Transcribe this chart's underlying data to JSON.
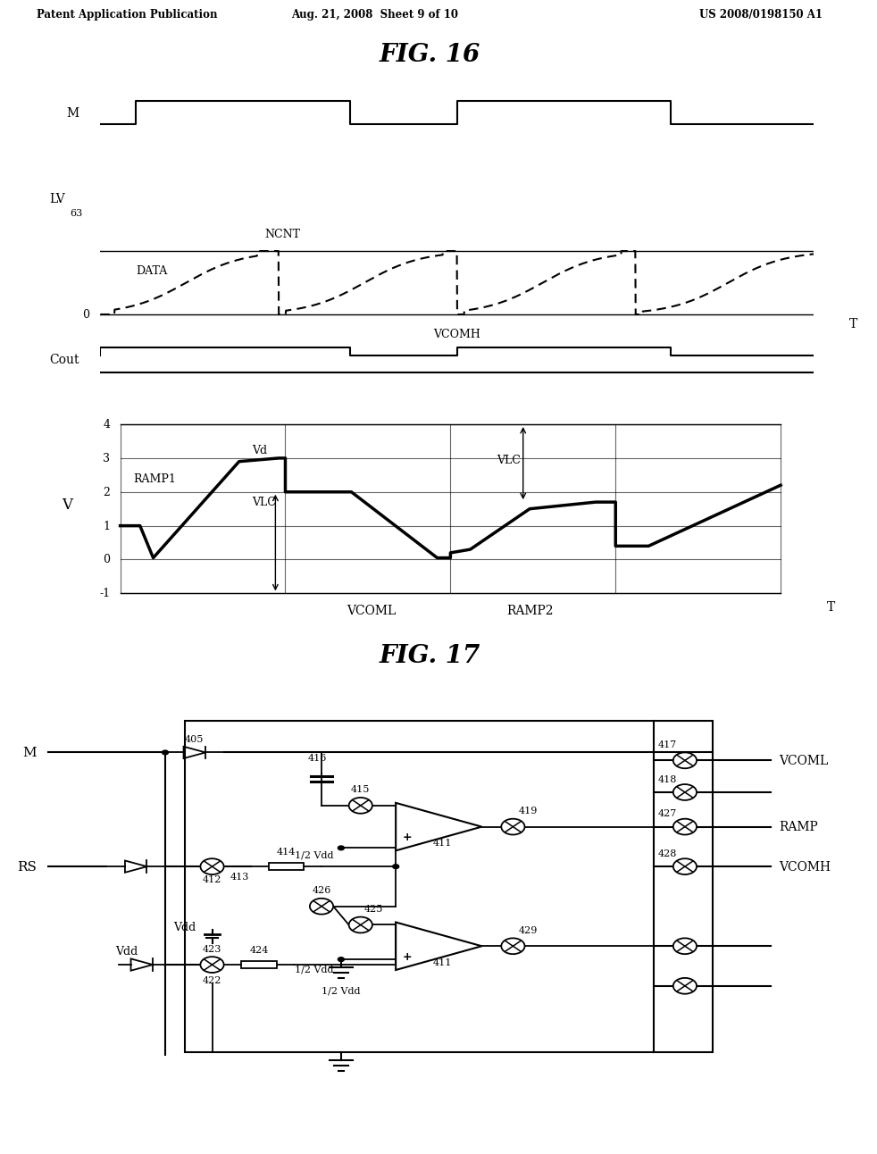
{
  "header_left": "Patent Application Publication",
  "header_center": "Aug. 21, 2008  Sheet 9 of 10",
  "header_right": "US 2008/0198150 A1",
  "fig16_title": "FIG. 16",
  "fig17_title": "FIG. 17",
  "background": "#ffffff"
}
